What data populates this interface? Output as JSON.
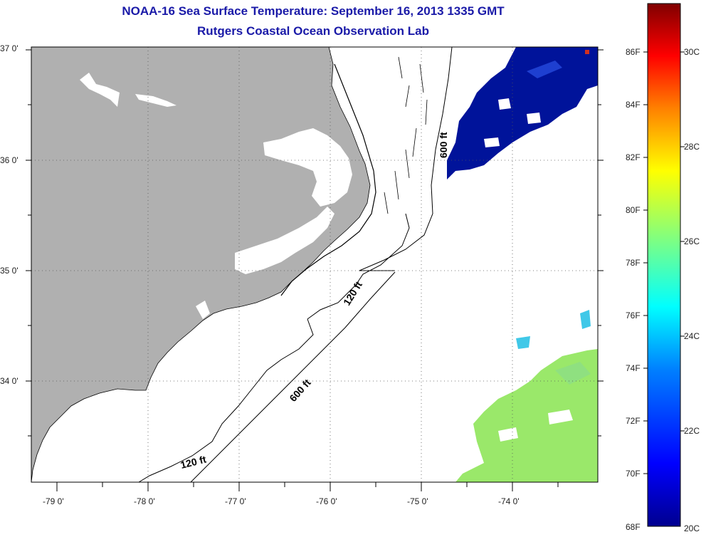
{
  "header": {
    "title": "NOAA-16 Sea Surface Temperature:  September 16, 2013 1335 GMT",
    "subtitle": "Rutgers Coastal Ocean Observation Lab"
  },
  "map": {
    "lat_labels": [
      "37 0'",
      "36 0'",
      "35 0'",
      "34 0'"
    ],
    "lon_labels": [
      "-79 0'",
      "-78 0'",
      "-77 0'",
      "-76 0'",
      "-75 0'",
      "-74 0'"
    ],
    "contour_labels": [
      "600 ft",
      "120 ft",
      "600 ft",
      "120 ft"
    ],
    "colors": {
      "land": "#b0b0b0",
      "water": "#ffffff",
      "coast": "#000000"
    }
  },
  "colorbar": {
    "fahrenheit_labels": [
      "86F",
      "84F",
      "82F",
      "80F",
      "78F",
      "76F",
      "74F",
      "72F",
      "70F",
      "68F"
    ],
    "celsius_labels": [
      "30C",
      "28C",
      "26C",
      "24C",
      "22C",
      "20C"
    ],
    "gradient_colors": [
      "#00008f",
      "#0000ff",
      "#0080ff",
      "#00ffff",
      "#80ff80",
      "#ffff00",
      "#ff8000",
      "#ff0000",
      "#800000"
    ]
  }
}
